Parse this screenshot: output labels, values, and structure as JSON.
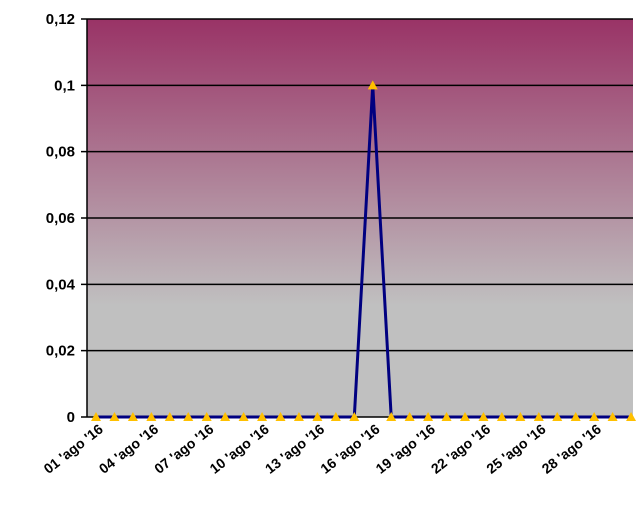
{
  "chart_data": {
    "type": "line",
    "title": "",
    "xlabel": "",
    "ylabel": "",
    "ylim": [
      0,
      0.12
    ],
    "y_ticks": [
      {
        "value": 0,
        "label": "0"
      },
      {
        "value": 0.02,
        "label": "0,02"
      },
      {
        "value": 0.04,
        "label": "0,04"
      },
      {
        "value": 0.06,
        "label": "0,06"
      },
      {
        "value": 0.08,
        "label": "0,08"
      },
      {
        "value": 0.1,
        "label": "0,1"
      },
      {
        "value": 0.12,
        "label": "0,12"
      }
    ],
    "x": [
      "01 'ago '16",
      "02 'ago '16",
      "03 'ago '16",
      "04 'ago '16",
      "05 'ago '16",
      "06 'ago '16",
      "07 'ago '16",
      "08 'ago '16",
      "09 'ago '16",
      "10 'ago '16",
      "11 'ago '16",
      "12 'ago '16",
      "13 'ago '16",
      "14 'ago '16",
      "15 'ago '16",
      "16 'ago '16",
      "17 'ago '16",
      "18 'ago '16",
      "19 'ago '16",
      "20 'ago '16",
      "21 'ago '16",
      "22 'ago '16",
      "23 'ago '16",
      "24 'ago '16",
      "25 'ago '16",
      "26 'ago '16",
      "27 'ago '16",
      "28 'ago '16",
      "29 'ago '16",
      "30 'ago '16"
    ],
    "x_tick_labels": [
      "01 'ago '16",
      "04 'ago '16",
      "07 'ago '16",
      "10 'ago '16",
      "13 'ago '16",
      "16 'ago '16",
      "19 'ago '16",
      "22 'ago '16",
      "25 'ago '16",
      "28 'ago '16"
    ],
    "series": [
      {
        "values": [
          0,
          0,
          0,
          0,
          0,
          0,
          0,
          0,
          0,
          0,
          0,
          0,
          0,
          0,
          0,
          0.1,
          0,
          0,
          0,
          0,
          0,
          0,
          0,
          0,
          0,
          0,
          0,
          0,
          0,
          0
        ]
      }
    ],
    "grid": true,
    "colors": {
      "line": "#000080",
      "marker": "#FFC000",
      "plot_top": "#993366",
      "plot_bottom": "#C0C0C0"
    }
  }
}
